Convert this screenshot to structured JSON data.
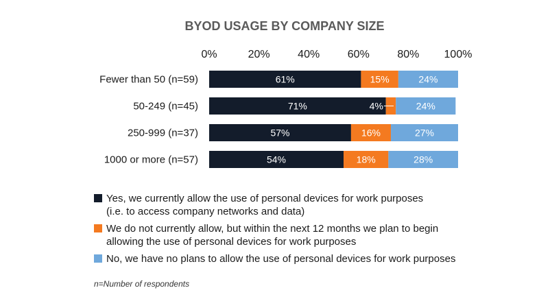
{
  "chart_data": {
    "type": "bar",
    "orientation": "horizontal",
    "stacked": true,
    "title": "BYOD USAGE BY COMPANY SIZE",
    "xlim": [
      0,
      100
    ],
    "x_ticks": [
      "0%",
      "20%",
      "40%",
      "60%",
      "80%",
      "100%"
    ],
    "x_tick_values": [
      0,
      20,
      40,
      60,
      80,
      100
    ],
    "x_axis_position": "top",
    "grid": false,
    "categories": [
      "Fewer than 50 (n=59)",
      "50-249 (n=45)",
      "250-999 (n=37)",
      "1000 or more (n=57)"
    ],
    "series": [
      {
        "name": "Yes, we currently allow the use of personal devices for work purposes (i.e. to access company networks and data)",
        "legend_lines": [
          "Yes, we currently allow the use of personal devices for work purposes",
          "(i.e. to access company networks and data)"
        ],
        "color": "#131c2b",
        "values": [
          61,
          71,
          57,
          54
        ],
        "labels": [
          "61%",
          "71%",
          "57%",
          "54%"
        ]
      },
      {
        "name": "We do not currently allow, but within the next 12 months we plan to begin allowing the use of personal devices for work purposes",
        "legend_lines": [
          "We do not currently allow, but within the next 12 months we plan to begin",
          "allowing the use of personal devices for work purposes"
        ],
        "color": "#f47a20",
        "values": [
          15,
          4,
          16,
          18
        ],
        "labels": [
          "15%",
          "4%",
          "16%",
          "18%"
        ]
      },
      {
        "name": "No, we have no plans to allow the use of personal devices for work purposes",
        "legend_lines": [
          "No, we have no plans to allow the use of personal devices for work purposes"
        ],
        "color": "#6fa8dc",
        "values": [
          24,
          24,
          27,
          28
        ],
        "labels": [
          "24%",
          "24%",
          "27%",
          "28%"
        ]
      }
    ],
    "legend_position": "bottom",
    "footnote": "n=Number of respondents"
  }
}
